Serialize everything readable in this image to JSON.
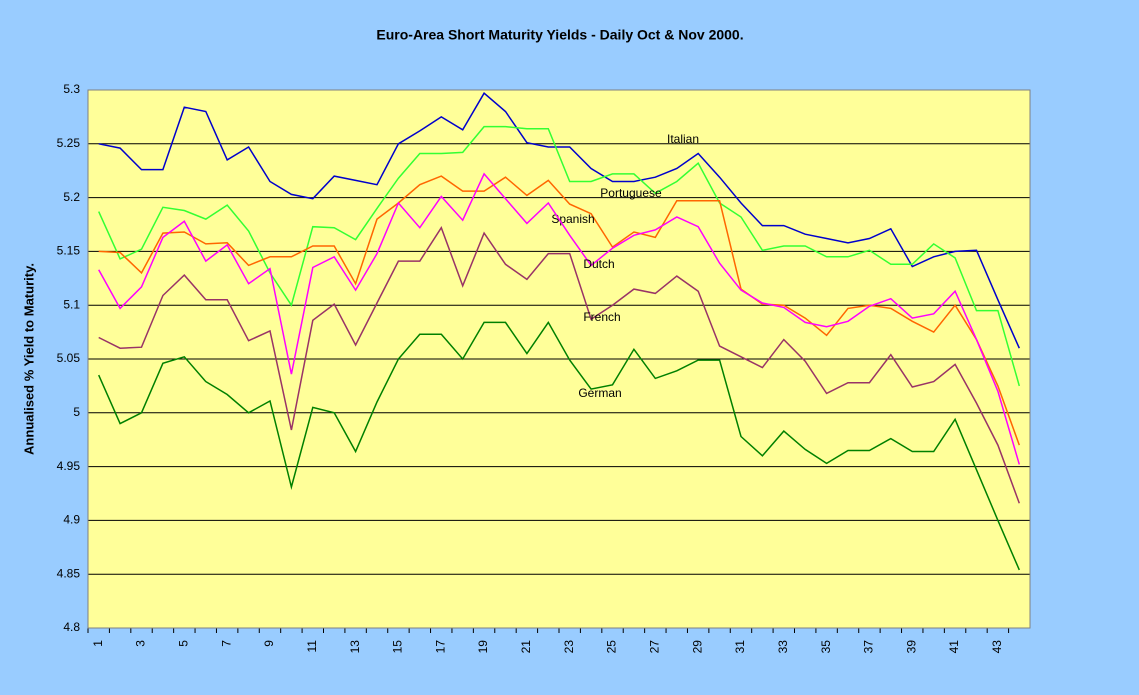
{
  "chart_data": {
    "type": "line",
    "title": "Euro-Area Short Maturity Yields - Daily Oct & Nov 2000.",
    "y_label": "Annualised % Yield to Maturity.",
    "categories": [
      "1",
      null,
      "3",
      null,
      "5",
      null,
      "7",
      null,
      "9",
      null,
      "11",
      null,
      "13",
      null,
      "15",
      null,
      "17",
      null,
      "19",
      null,
      "21",
      null,
      "23",
      null,
      "25",
      null,
      "27",
      null,
      "29",
      null,
      "31",
      null,
      "33",
      null,
      "35",
      null,
      "37",
      null,
      "39",
      null,
      "41",
      null,
      "43",
      null
    ],
    "ylim": [
      4.8,
      5.3
    ],
    "yticks": [
      4.8,
      4.85,
      4.9,
      4.95,
      5,
      5.05,
      5.1,
      5.15,
      5.2,
      5.25,
      5.3
    ],
    "grid": true,
    "series": [
      {
        "name": "Italian",
        "color": "#0000cc",
        "values": [
          5.25,
          5.246,
          5.226,
          5.226,
          5.284,
          5.28,
          5.235,
          5.247,
          5.215,
          5.203,
          5.199,
          5.22,
          5.216,
          5.212,
          5.25,
          5.262,
          5.275,
          5.263,
          5.297,
          5.28,
          5.251,
          5.247,
          5.247,
          5.227,
          5.215,
          5.215,
          5.219,
          5.227,
          5.241,
          5.219,
          5.195,
          5.174,
          5.174,
          5.166,
          5.162,
          5.158,
          5.162,
          5.171,
          5.136,
          5.145,
          5.15,
          5.151,
          5.105,
          5.06
        ]
      },
      {
        "name": "Portuguese",
        "color": "#33ff33",
        "values": [
          5.187,
          5.143,
          5.152,
          5.191,
          5.188,
          5.18,
          5.193,
          5.169,
          5.13,
          5.1,
          5.173,
          5.172,
          5.161,
          5.19,
          5.218,
          5.241,
          5.241,
          5.242,
          5.266,
          5.266,
          5.264,
          5.264,
          5.215,
          5.215,
          5.222,
          5.222,
          5.204,
          5.215,
          5.232,
          5.195,
          5.182,
          5.151,
          5.155,
          5.155,
          5.145,
          5.145,
          5.151,
          5.138,
          5.138,
          5.157,
          5.144,
          5.095,
          5.095,
          5.025
        ]
      },
      {
        "name": "Spanish",
        "color": "#ff6600",
        "values": [
          5.15,
          5.149,
          5.13,
          5.167,
          5.168,
          5.157,
          5.158,
          5.137,
          5.145,
          5.145,
          5.155,
          5.155,
          5.12,
          5.18,
          5.195,
          5.212,
          5.22,
          5.206,
          5.206,
          5.219,
          5.202,
          5.216,
          5.194,
          5.185,
          5.154,
          5.168,
          5.163,
          5.197,
          5.197,
          5.197,
          5.115,
          5.101,
          5.1,
          5.088,
          5.072,
          5.097,
          5.1,
          5.097,
          5.085,
          5.075,
          5.1,
          5.068,
          5.025,
          4.97
        ]
      },
      {
        "name": "Dutch",
        "color": "#ff00ff",
        "values": [
          5.133,
          5.097,
          5.117,
          5.163,
          5.178,
          5.141,
          5.156,
          5.12,
          5.134,
          5.036,
          5.135,
          5.145,
          5.114,
          5.148,
          5.195,
          5.172,
          5.201,
          5.179,
          5.222,
          5.199,
          5.176,
          5.195,
          5.165,
          5.137,
          5.153,
          5.165,
          5.17,
          5.182,
          5.173,
          5.139,
          5.114,
          5.102,
          5.098,
          5.084,
          5.08,
          5.085,
          5.099,
          5.106,
          5.088,
          5.092,
          5.113,
          5.068,
          5.02,
          4.952
        ]
      },
      {
        "name": "French",
        "color": "#993366",
        "values": [
          5.07,
          5.06,
          5.061,
          5.109,
          5.128,
          5.105,
          5.105,
          5.067,
          5.076,
          4.984,
          5.086,
          5.101,
          5.063,
          5.102,
          5.141,
          5.141,
          5.172,
          5.118,
          5.167,
          5.138,
          5.124,
          5.148,
          5.148,
          5.087,
          5.1,
          5.115,
          5.111,
          5.127,
          5.113,
          5.062,
          5.052,
          5.042,
          5.068,
          5.048,
          5.018,
          5.028,
          5.028,
          5.054,
          5.024,
          5.029,
          5.045,
          5.009,
          4.97,
          4.916
        ]
      },
      {
        "name": "German",
        "color": "#008000",
        "values": [
          5.035,
          4.99,
          5.0,
          5.046,
          5.052,
          5.029,
          5.017,
          5.0,
          5.011,
          4.931,
          5.005,
          5.0,
          4.964,
          5.01,
          5.05,
          5.073,
          5.073,
          5.05,
          5.084,
          5.084,
          5.055,
          5.084,
          5.049,
          5.022,
          5.026,
          5.059,
          5.032,
          5.039,
          5.049,
          5.049,
          4.978,
          4.96,
          4.983,
          4.966,
          4.953,
          4.965,
          4.965,
          4.976,
          4.964,
          4.964,
          4.994,
          4.947,
          4.9,
          4.854
        ]
      }
    ]
  }
}
